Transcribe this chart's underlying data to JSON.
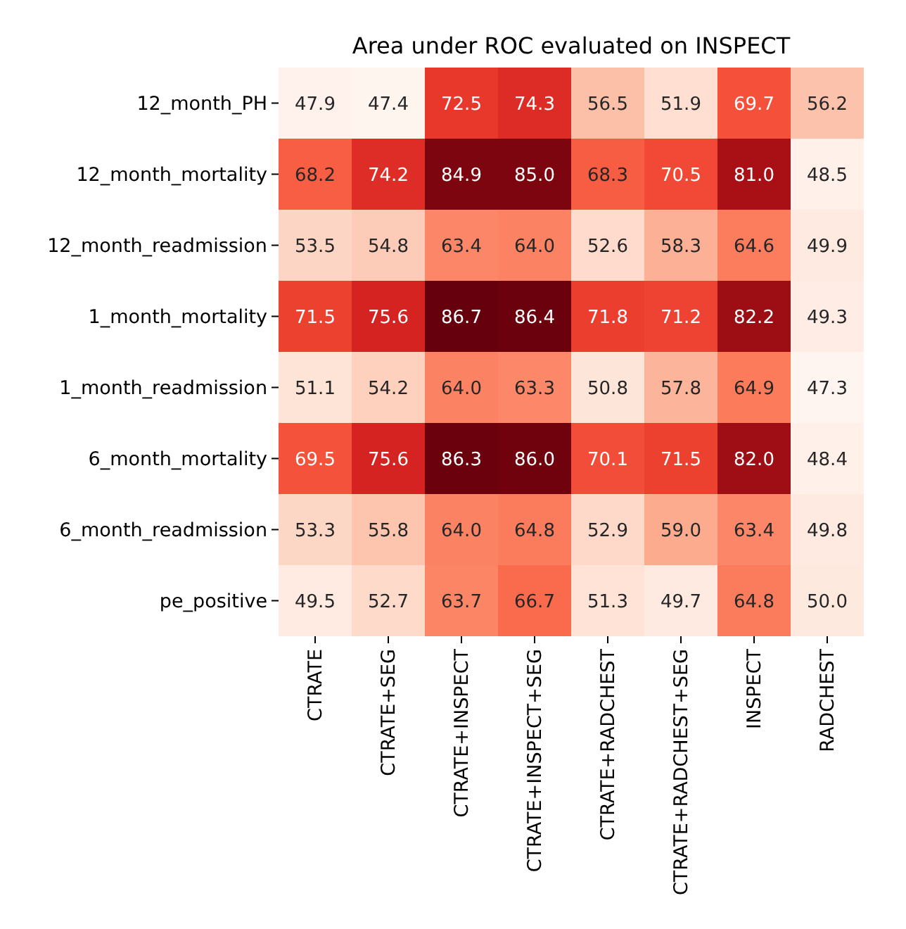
{
  "chart_data": {
    "type": "heatmap",
    "title": "Area under ROC evaluated on INSPECT",
    "categories": [
      "CTRATE",
      "CTRATE+SEG",
      "CTRATE+INSPECT",
      "CTRATE+INSPECT+SEG",
      "CTRATE+RADCHEST",
      "CTRATE+RADCHEST+SEG",
      "INSPECT",
      "RADCHEST"
    ],
    "y_categories": [
      "12_month_PH",
      "12_month_mortality",
      "12_month_readmission",
      "1_month_mortality",
      "1_month_readmission",
      "6_month_mortality",
      "6_month_readmission",
      "pe_positive"
    ],
    "cells": [
      [
        47.9,
        47.4,
        72.5,
        74.3,
        56.5,
        51.9,
        69.7,
        56.2
      ],
      [
        68.2,
        74.2,
        84.9,
        85.0,
        68.3,
        70.5,
        81.0,
        48.5
      ],
      [
        53.5,
        54.8,
        63.4,
        64.0,
        52.6,
        58.3,
        64.6,
        49.9
      ],
      [
        71.5,
        75.6,
        86.7,
        86.4,
        71.8,
        71.2,
        82.2,
        49.3
      ],
      [
        51.1,
        54.2,
        64.0,
        63.3,
        50.8,
        57.8,
        64.9,
        47.3
      ],
      [
        69.5,
        75.6,
        86.3,
        86.0,
        70.1,
        71.5,
        82.0,
        48.4
      ],
      [
        53.3,
        55.8,
        64.0,
        64.8,
        52.9,
        59.0,
        63.4,
        49.8
      ],
      [
        49.5,
        52.7,
        63.7,
        66.7,
        51.3,
        49.7,
        64.8,
        50.0
      ]
    ],
    "cell_labels": [
      [
        "47.9",
        "47.4",
        "72.5",
        "74.3",
        "56.5",
        "51.9",
        "69.7",
        "56.2"
      ],
      [
        "68.2",
        "74.2",
        "84.9",
        "85.0",
        "68.3",
        "70.5",
        "81.0",
        "48.5"
      ],
      [
        "53.5",
        "54.8",
        "63.4",
        "64.0",
        "52.6",
        "58.3",
        "64.6",
        "49.9"
      ],
      [
        "71.5",
        "75.6",
        "86.7",
        "86.4",
        "71.8",
        "71.2",
        "82.2",
        "49.3"
      ],
      [
        "51.1",
        "54.2",
        "64.0",
        "63.3",
        "50.8",
        "57.8",
        "64.9",
        "47.3"
      ],
      [
        "69.5",
        "75.6",
        "86.3",
        "86.0",
        "70.1",
        "71.5",
        "82.0",
        "48.4"
      ],
      [
        "53.3",
        "55.8",
        "64.0",
        "64.8",
        "52.9",
        "59.0",
        "63.4",
        "49.8"
      ],
      [
        "49.5",
        "52.7",
        "63.7",
        "66.7",
        "51.3",
        "49.7",
        "64.8",
        "50.0"
      ]
    ],
    "data_labels": true
  }
}
